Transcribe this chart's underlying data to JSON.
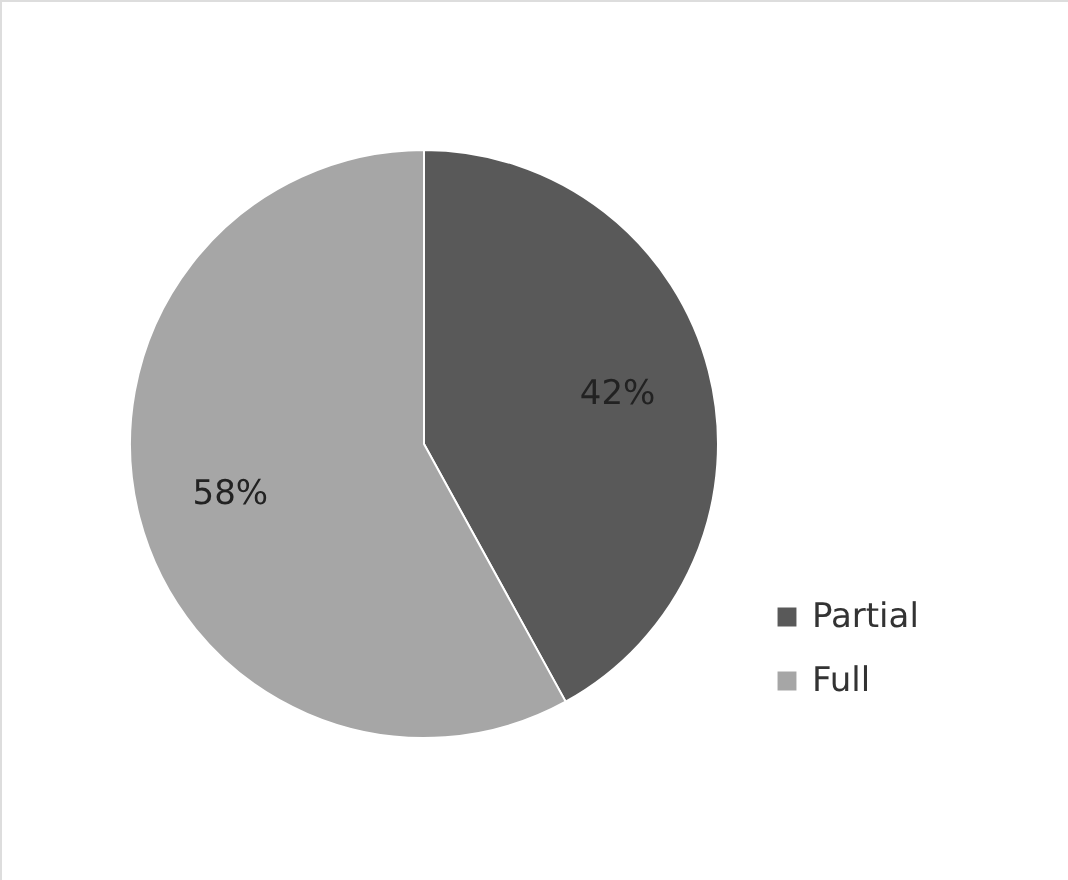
{
  "chart_data": {
    "type": "pie",
    "categories": [
      "Partial",
      "Full"
    ],
    "values": [
      42,
      58
    ],
    "colors": [
      "#595959",
      "#a6a6a6"
    ],
    "value_labels": [
      "42%",
      "58%"
    ],
    "legend": "right"
  }
}
